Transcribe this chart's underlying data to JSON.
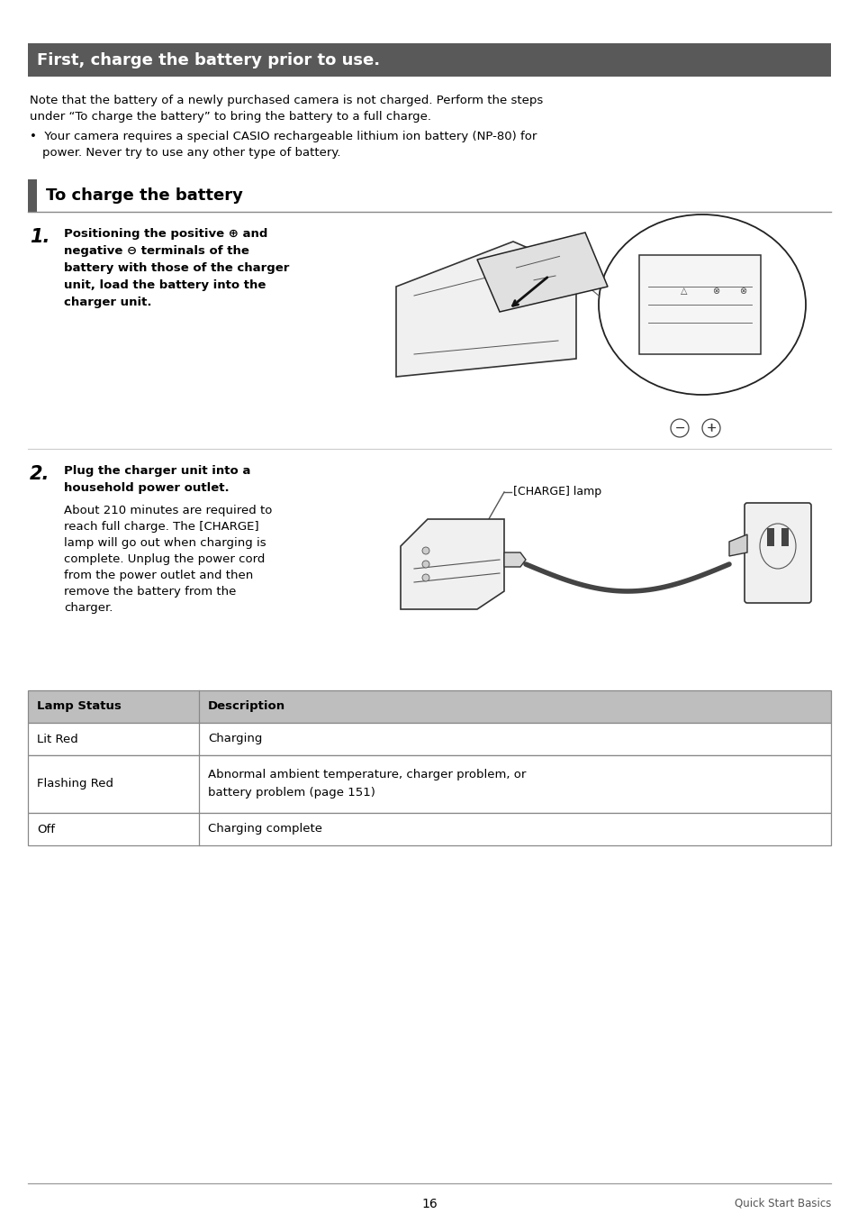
{
  "bg_color": "#ffffff",
  "header_bg": "#595959",
  "header_text": "First, charge the battery prior to use.",
  "header_text_color": "#ffffff",
  "header_font_size": 13,
  "body_font_size": 9.5,
  "body_text_color": "#000000",
  "section_bar_color": "#595959",
  "section_title": "To charge the battery",
  "section_title_font_size": 13,
  "intro_line1": "Note that the battery of a newly purchased camera is not charged. Perform the steps",
  "intro_line2": "under “To charge the battery” to bring the battery to a full charge.",
  "bullet_line1": "•  Your camera requires a special CASIO rechargeable lithium ion battery (NP-80) for",
  "bullet_line2": "     power. Never try to use any other type of battery.",
  "step1_num": "1.",
  "step1_bold_lines": [
    "Positioning the positive ⊕ and",
    "negative ⊖ terminals of the",
    "battery with those of the charger",
    "unit, load the battery into the",
    "charger unit."
  ],
  "step2_num": "2.",
  "step2_bold_lines": [
    "Plug the charger unit into a",
    "household power outlet."
  ],
  "step2_body_lines": [
    "About 210 minutes are required to",
    "reach full charge. The [CHARGE]",
    "lamp will go out when charging is",
    "complete. Unplug the power cord",
    "from the power outlet and then",
    "remove the battery from the",
    "charger."
  ],
  "charge_lamp_label": "[CHARGE] lamp",
  "table_header_bg": "#bebebe",
  "table_col1_header": "Lamp Status",
  "table_col2_header": "Description",
  "table_rows": [
    [
      "Lit Red",
      "Charging"
    ],
    [
      "Flashing Red",
      "Abnormal ambient temperature, charger problem, or\nbattery problem (page 151)"
    ],
    [
      "Off",
      "Charging complete"
    ]
  ],
  "page_number": "16",
  "footer_right": "Quick Start Basics",
  "footer_line_color": "#999999"
}
